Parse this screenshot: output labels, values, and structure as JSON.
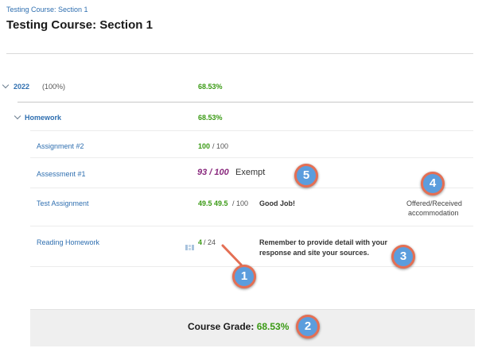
{
  "breadcrumb": "Testing Course: Section 1",
  "page_title": "Testing Course: Section 1",
  "period": {
    "name": "2022",
    "weight": "(100%)",
    "grade": "68.53%"
  },
  "category": {
    "name": "Homework",
    "grade": "68.53%"
  },
  "items": [
    {
      "name": "Assignment #2",
      "score": "100",
      "max": "/ 100"
    },
    {
      "name": "Assessment #1",
      "score": "93 / 100",
      "status": "Exempt"
    },
    {
      "name": "Test Assignment",
      "score": "49.5 49.5",
      "max": "/ 100",
      "comment": "Good Job!",
      "note_line1": "Offered/Received",
      "note_line2": "accommodation"
    },
    {
      "name": "Reading Homework",
      "score": "4",
      "max": "/ 24",
      "comment_line1": "Remember to provide detail with your",
      "comment_line2": "response and site your sources."
    }
  ],
  "course_grade": {
    "label": "Course Grade:",
    "value": "68.53%"
  },
  "callouts": [
    "1",
    "2",
    "3",
    "4",
    "5"
  ],
  "colors": {
    "link": "#2f6fb0",
    "grade_green": "#3a9a14",
    "exempt_purple": "#8a2a7e",
    "callout_fill": "#5b9ddd",
    "callout_ring": "#e46f54"
  }
}
